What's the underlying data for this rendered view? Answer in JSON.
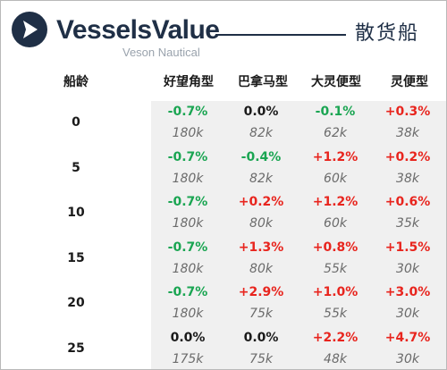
{
  "brand": {
    "name": "VesselsValue",
    "subtitle": "Veson Nautical"
  },
  "vessel_type": "散货船",
  "headers": {
    "age": "船龄",
    "columns": [
      "好望角型",
      "巴拿马型",
      "大灵便型",
      "灵便型"
    ]
  },
  "colors": {
    "positive": "#e8251e",
    "negative": "#1aa552",
    "neutral": "#1a1a1a",
    "brand": "#1f2f46"
  },
  "rows": [
    {
      "age": "0",
      "cells": [
        {
          "change": "-0.7%",
          "value": "180k"
        },
        {
          "change": "0.0%",
          "value": "82k"
        },
        {
          "change": "-0.1%",
          "value": "62k"
        },
        {
          "change": "+0.3%",
          "value": "38k"
        }
      ]
    },
    {
      "age": "5",
      "cells": [
        {
          "change": "-0.7%",
          "value": "180k"
        },
        {
          "change": "-0.4%",
          "value": "82k"
        },
        {
          "change": "+1.2%",
          "value": "60k"
        },
        {
          "change": "+0.2%",
          "value": "38k"
        }
      ]
    },
    {
      "age": "10",
      "cells": [
        {
          "change": "-0.7%",
          "value": "180k"
        },
        {
          "change": "+0.2%",
          "value": "80k"
        },
        {
          "change": "+1.2%",
          "value": "60k"
        },
        {
          "change": "+0.6%",
          "value": "35k"
        }
      ]
    },
    {
      "age": "15",
      "cells": [
        {
          "change": "-0.7%",
          "value": "180k"
        },
        {
          "change": "+1.3%",
          "value": "80k"
        },
        {
          "change": "+0.8%",
          "value": "55k"
        },
        {
          "change": "+1.5%",
          "value": "30k"
        }
      ]
    },
    {
      "age": "20",
      "cells": [
        {
          "change": "-0.7%",
          "value": "180k"
        },
        {
          "change": "+2.9%",
          "value": "75k"
        },
        {
          "change": "+1.0%",
          "value": "55k"
        },
        {
          "change": "+3.0%",
          "value": "30k"
        }
      ]
    },
    {
      "age": "25",
      "cells": [
        {
          "change": "0.0%",
          "value": "175k"
        },
        {
          "change": "0.0%",
          "value": "75k"
        },
        {
          "change": "+2.2%",
          "value": "48k"
        },
        {
          "change": "+4.7%",
          "value": "30k"
        }
      ]
    }
  ]
}
